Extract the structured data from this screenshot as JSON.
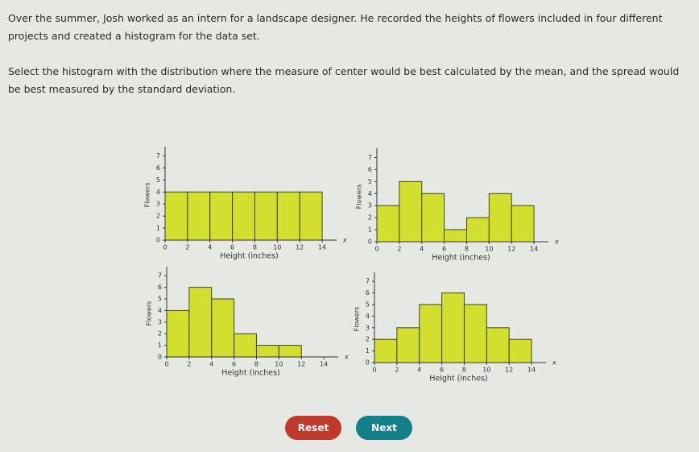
{
  "question": {
    "intro": "Over the summer, Josh worked as an intern for a landscape designer. He recorded the heights of flowers included in four different projects and created a histogram for the data set.",
    "prompt": "Select the histogram with the distribution where the measure of center would be best calculated by the mean, and the spread would be best measured by the standard deviation."
  },
  "histograms": [
    {
      "type": "histogram",
      "bins": [
        0,
        2,
        4,
        6,
        8,
        10,
        12,
        14
      ],
      "counts": [
        4,
        4,
        4,
        4,
        4,
        4,
        4
      ],
      "color": "#d3df2e",
      "xlim": [
        0,
        15
      ],
      "ylim": [
        0,
        7.5
      ],
      "xticks": [
        0,
        2,
        4,
        6,
        8,
        10,
        12,
        14
      ],
      "yticks": [
        0,
        1,
        2,
        3,
        4,
        5,
        6,
        7
      ],
      "xlabel": "Height (inches)",
      "ylabel": "Flowers",
      "axis_symbol": "x"
    },
    {
      "type": "histogram",
      "bins": [
        0,
        2,
        4,
        6,
        8,
        10,
        12,
        14
      ],
      "counts": [
        3,
        5,
        4,
        1,
        2,
        4,
        3
      ],
      "color": "#d3df2e",
      "xlim": [
        0,
        15
      ],
      "ylim": [
        0,
        7.5
      ],
      "xticks": [
        0,
        2,
        4,
        6,
        8,
        10,
        12,
        14
      ],
      "yticks": [
        0,
        1,
        2,
        3,
        4,
        5,
        6,
        7
      ],
      "xlabel": "Height (inches)",
      "ylabel": "Flowers",
      "axis_symbol": "x"
    },
    {
      "type": "histogram",
      "bins": [
        0,
        2,
        4,
        6,
        8,
        10,
        12
      ],
      "counts": [
        4,
        6,
        5,
        2,
        1,
        1
      ],
      "color": "#d3df2e",
      "xlim": [
        0,
        15
      ],
      "ylim": [
        0,
        7.5
      ],
      "xticks": [
        0,
        2,
        4,
        6,
        8,
        10,
        12,
        14
      ],
      "yticks": [
        0,
        1,
        2,
        3,
        4,
        5,
        6,
        7
      ],
      "xlabel": "Height (inches)",
      "ylabel": "Flowers",
      "axis_symbol": "x"
    },
    {
      "type": "histogram",
      "bins": [
        0,
        2,
        4,
        6,
        8,
        10,
        12,
        14
      ],
      "counts": [
        2,
        3,
        5,
        6,
        5,
        3,
        2
      ],
      "color": "#d3df2e",
      "xlim": [
        0,
        15
      ],
      "ylim": [
        0,
        7.5
      ],
      "xticks": [
        0,
        2,
        4,
        6,
        8,
        10,
        12,
        14
      ],
      "yticks": [
        0,
        1,
        2,
        3,
        4,
        5,
        6,
        7
      ],
      "xlabel": "Height (inches)",
      "ylabel": "Flowers",
      "axis_symbol": "x"
    }
  ],
  "buttons": {
    "reset": "Reset",
    "next": "Next"
  }
}
